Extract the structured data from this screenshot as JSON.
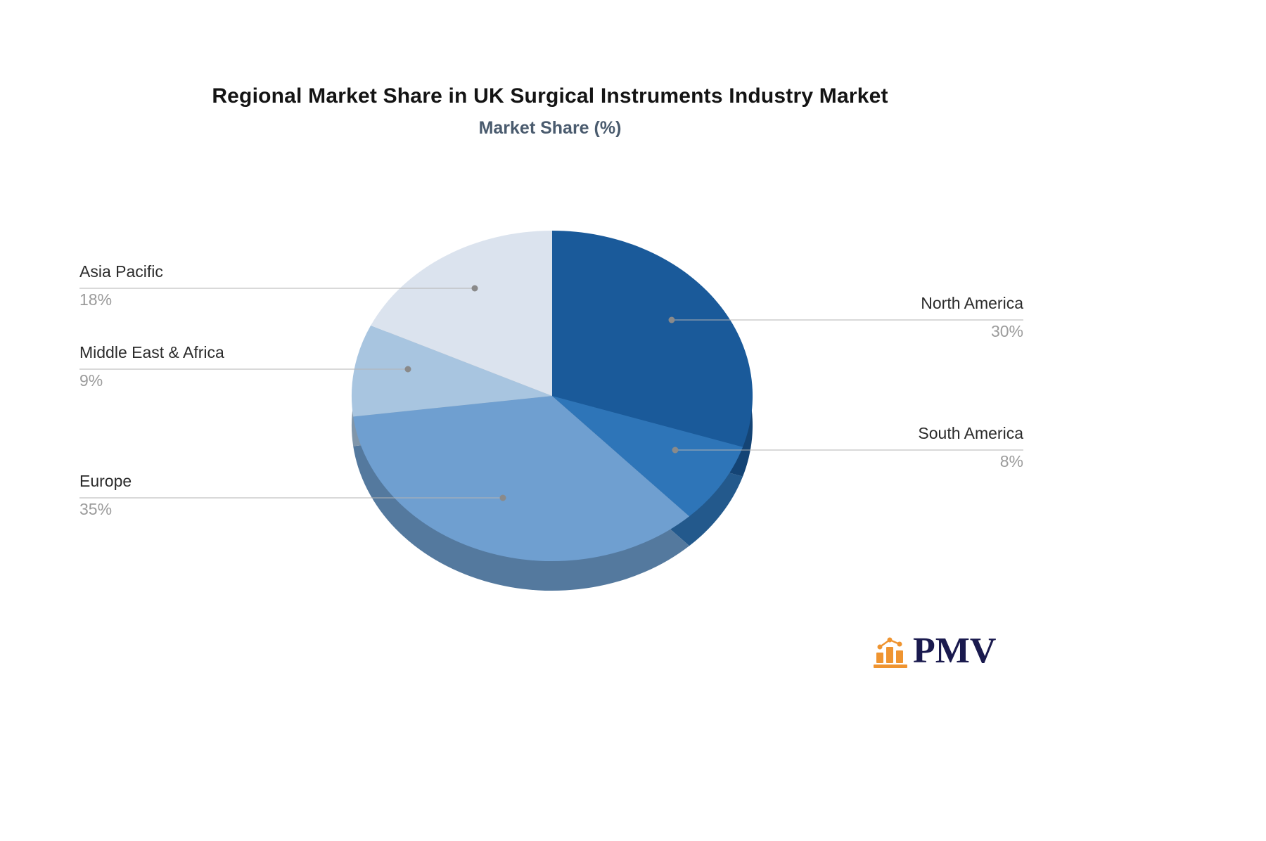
{
  "chart_data": {
    "type": "pie",
    "style": "3d",
    "title": "Regional Market Share in UK Surgical Instruments Industry Market",
    "subtitle": "Market Share (%)",
    "unit": "%",
    "legend_position": "none",
    "categories": [
      "North America",
      "South America",
      "Europe",
      "Middle East & Africa",
      "Asia Pacific"
    ],
    "values": [
      30,
      8,
      35,
      9,
      18
    ],
    "pct_labels": [
      "30%",
      "8%",
      "35%",
      "9%",
      "18%"
    ],
    "colors": [
      "#1a5a9a",
      "#2e75b8",
      "#6f9fd0",
      "#a8c5e0",
      "#dbe3ee"
    ],
    "start_angle": "top",
    "direction": "clockwise",
    "leader_line_color": "#b3b3b3",
    "leader_dot_color": "#8a8a8a",
    "label_name_color": "#2b2b2b",
    "label_pct_color": "#9b9b9b"
  },
  "logo": {
    "text": "PMV",
    "text_color": "#1a1a4e",
    "icon_color": "#ef9430"
  }
}
